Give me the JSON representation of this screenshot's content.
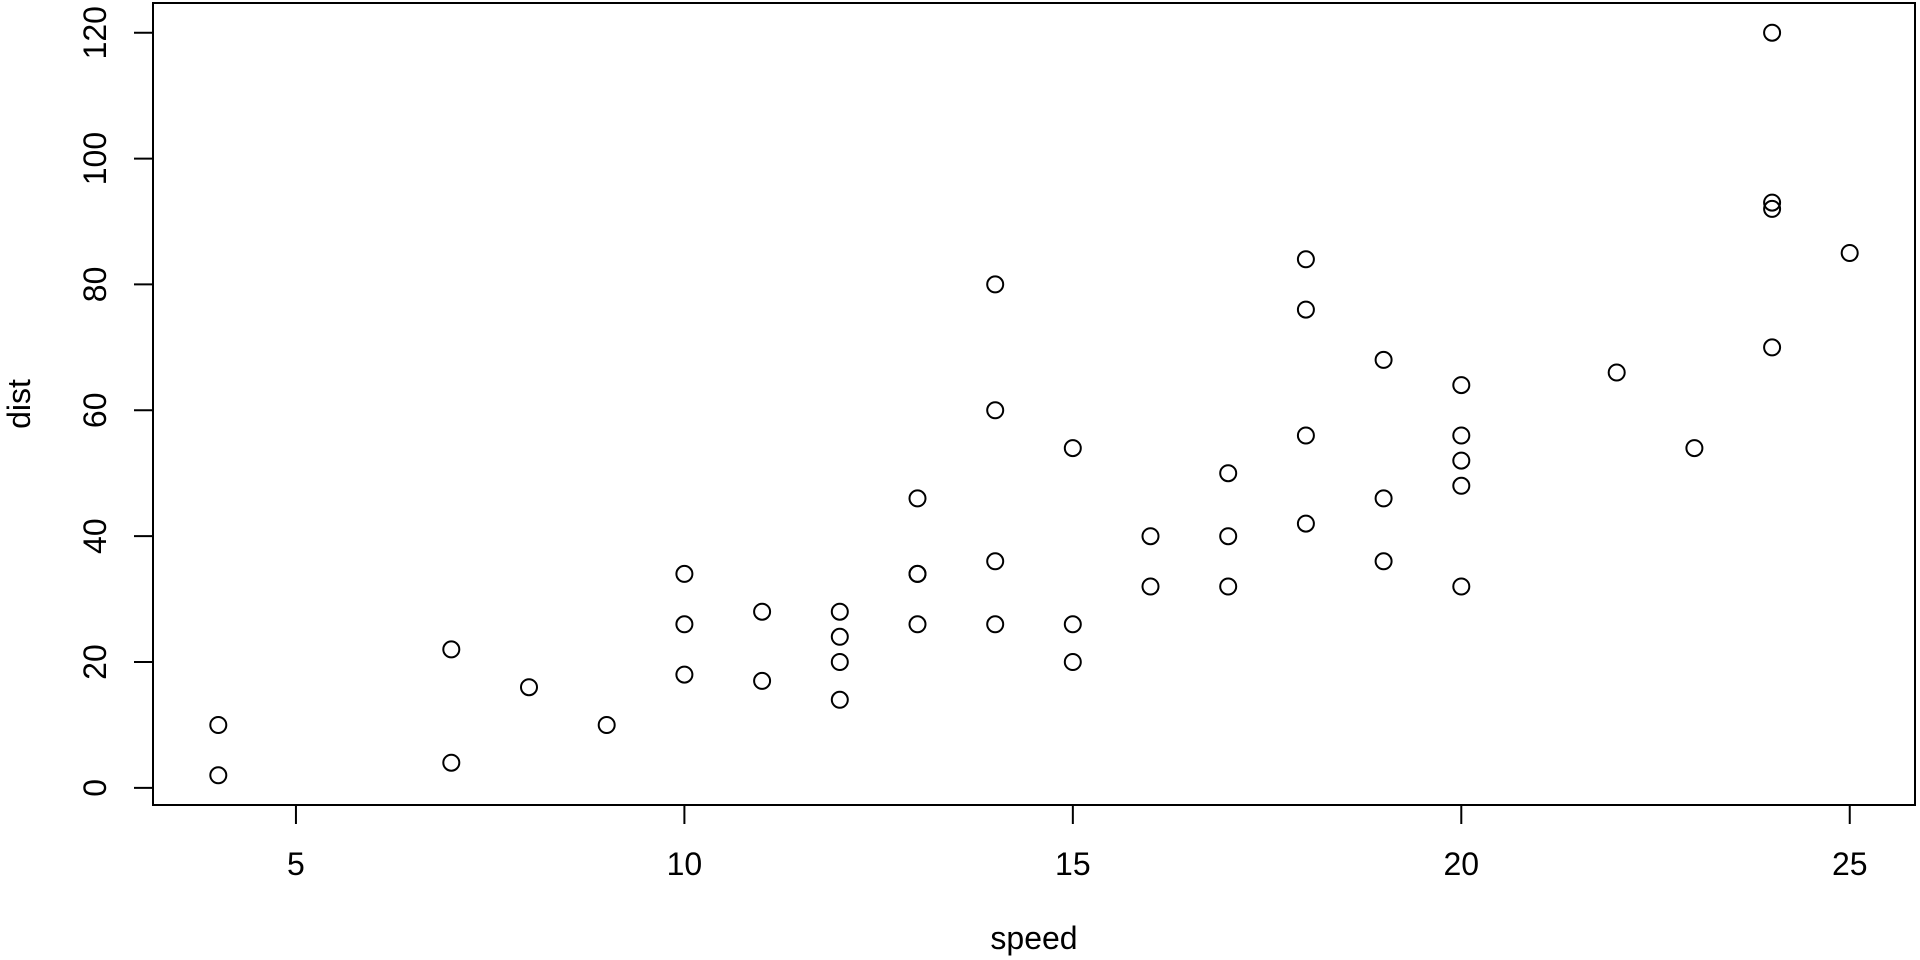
{
  "page": {
    "background_color": "#ffffff",
    "foreground_color": "#000000"
  },
  "chart_data": {
    "type": "scatter",
    "title": "",
    "xlabel": "speed",
    "ylabel": "dist",
    "x_ticks": [
      5,
      10,
      15,
      20,
      25
    ],
    "y_ticks": [
      0,
      20,
      40,
      60,
      80,
      100,
      120
    ],
    "xlim": [
      4,
      25
    ],
    "ylim": [
      2,
      120
    ],
    "range_padding_frac": 0.04,
    "grid": false,
    "legend": "none",
    "marker": {
      "shape": "open-circle",
      "radius_px": 8,
      "stroke_px": 2,
      "color": "#000000"
    },
    "points": [
      [
        4,
        2
      ],
      [
        4,
        10
      ],
      [
        7,
        4
      ],
      [
        7,
        22
      ],
      [
        8,
        16
      ],
      [
        9,
        10
      ],
      [
        10,
        18
      ],
      [
        10,
        26
      ],
      [
        10,
        34
      ],
      [
        11,
        17
      ],
      [
        11,
        28
      ],
      [
        12,
        14
      ],
      [
        12,
        20
      ],
      [
        12,
        24
      ],
      [
        12,
        28
      ],
      [
        13,
        26
      ],
      [
        13,
        34
      ],
      [
        13,
        34
      ],
      [
        13,
        46
      ],
      [
        14,
        26
      ],
      [
        14,
        36
      ],
      [
        14,
        60
      ],
      [
        14,
        80
      ],
      [
        15,
        20
      ],
      [
        15,
        26
      ],
      [
        15,
        54
      ],
      [
        16,
        32
      ],
      [
        16,
        40
      ],
      [
        17,
        32
      ],
      [
        17,
        40
      ],
      [
        17,
        50
      ],
      [
        18,
        42
      ],
      [
        18,
        56
      ],
      [
        18,
        76
      ],
      [
        18,
        84
      ],
      [
        19,
        36
      ],
      [
        19,
        46
      ],
      [
        19,
        68
      ],
      [
        20,
        32
      ],
      [
        20,
        48
      ],
      [
        20,
        52
      ],
      [
        20,
        56
      ],
      [
        20,
        64
      ],
      [
        22,
        66
      ],
      [
        23,
        54
      ],
      [
        24,
        70
      ],
      [
        24,
        92
      ],
      [
        24,
        93
      ],
      [
        24,
        120
      ],
      [
        25,
        85
      ]
    ]
  }
}
